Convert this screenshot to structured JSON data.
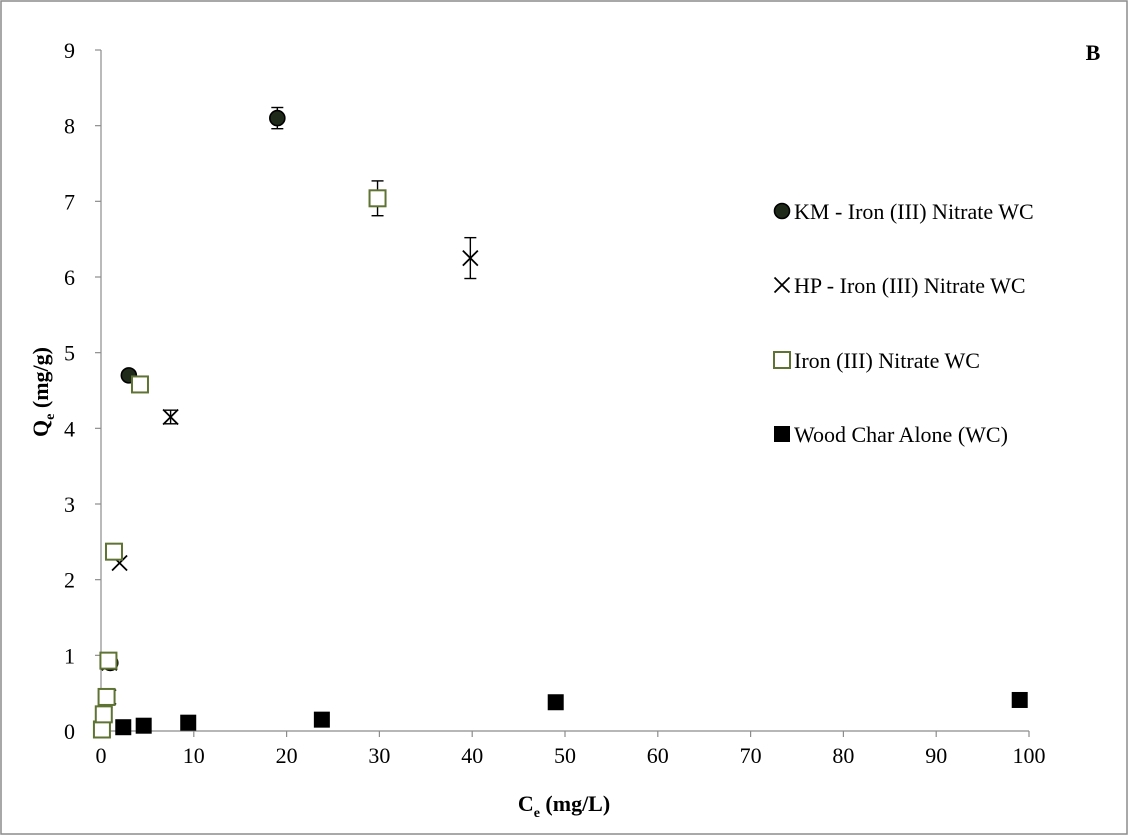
{
  "chart_data": {
    "type": "scatter",
    "panel_label": "B",
    "xlabel": "C",
    "xlabel_sub": "e",
    "xlabel_unit": " (mg/L)",
    "ylabel": "Q",
    "ylabel_sub": "e",
    "ylabel_unit": " (mg/g)",
    "xlim": [
      0,
      100
    ],
    "ylim": [
      0,
      9
    ],
    "xticks": [
      0,
      10,
      20,
      30,
      40,
      50,
      60,
      70,
      80,
      90,
      100
    ],
    "yticks": [
      0,
      1,
      2,
      3,
      4,
      5,
      6,
      7,
      8,
      9
    ],
    "grid": false,
    "legend_position": "right",
    "series": [
      {
        "name": "KM - Iron (III) Nitrate WC",
        "marker": "circle",
        "color": "#000000",
        "fill": "#1f2a1a",
        "points": [
          {
            "x": 0.1,
            "y": 0.02
          },
          {
            "x": 0.3,
            "y": 0.22
          },
          {
            "x": 0.6,
            "y": 0.45
          },
          {
            "x": 1.0,
            "y": 0.9
          },
          {
            "x": 3.0,
            "y": 4.7
          },
          {
            "x": 19.0,
            "y": 8.1,
            "err": 0.14
          }
        ]
      },
      {
        "name": "HP -  Iron (III) Nitrate WC",
        "marker": "x",
        "color": "#000000",
        "points": [
          {
            "x": 0.1,
            "y": 0.02
          },
          {
            "x": 0.4,
            "y": 0.22
          },
          {
            "x": 0.8,
            "y": 0.45
          },
          {
            "x": 0.9,
            "y": 0.9
          },
          {
            "x": 2.0,
            "y": 2.22
          },
          {
            "x": 7.5,
            "y": 4.15,
            "err": 0.09
          },
          {
            "x": 39.8,
            "y": 6.25,
            "err": 0.27
          }
        ]
      },
      {
        "name": "Iron (III) Nitrate WC",
        "marker": "open-square",
        "color": "#5f7333",
        "points": [
          {
            "x": 0.1,
            "y": 0.02
          },
          {
            "x": 0.3,
            "y": 0.22
          },
          {
            "x": 0.6,
            "y": 0.45
          },
          {
            "x": 0.8,
            "y": 0.93
          },
          {
            "x": 1.4,
            "y": 2.37
          },
          {
            "x": 4.2,
            "y": 4.58
          },
          {
            "x": 29.8,
            "y": 7.04,
            "err": 0.23
          }
        ]
      },
      {
        "name": "Wood Char Alone (WC)",
        "marker": "square",
        "color": "#000000",
        "points": [
          {
            "x": 0.1,
            "y": 0.01
          },
          {
            "x": 2.4,
            "y": 0.05
          },
          {
            "x": 4.6,
            "y": 0.07
          },
          {
            "x": 9.4,
            "y": 0.11
          },
          {
            "x": 23.8,
            "y": 0.15
          },
          {
            "x": 49.0,
            "y": 0.38
          },
          {
            "x": 99.0,
            "y": 0.41
          }
        ]
      }
    ]
  }
}
